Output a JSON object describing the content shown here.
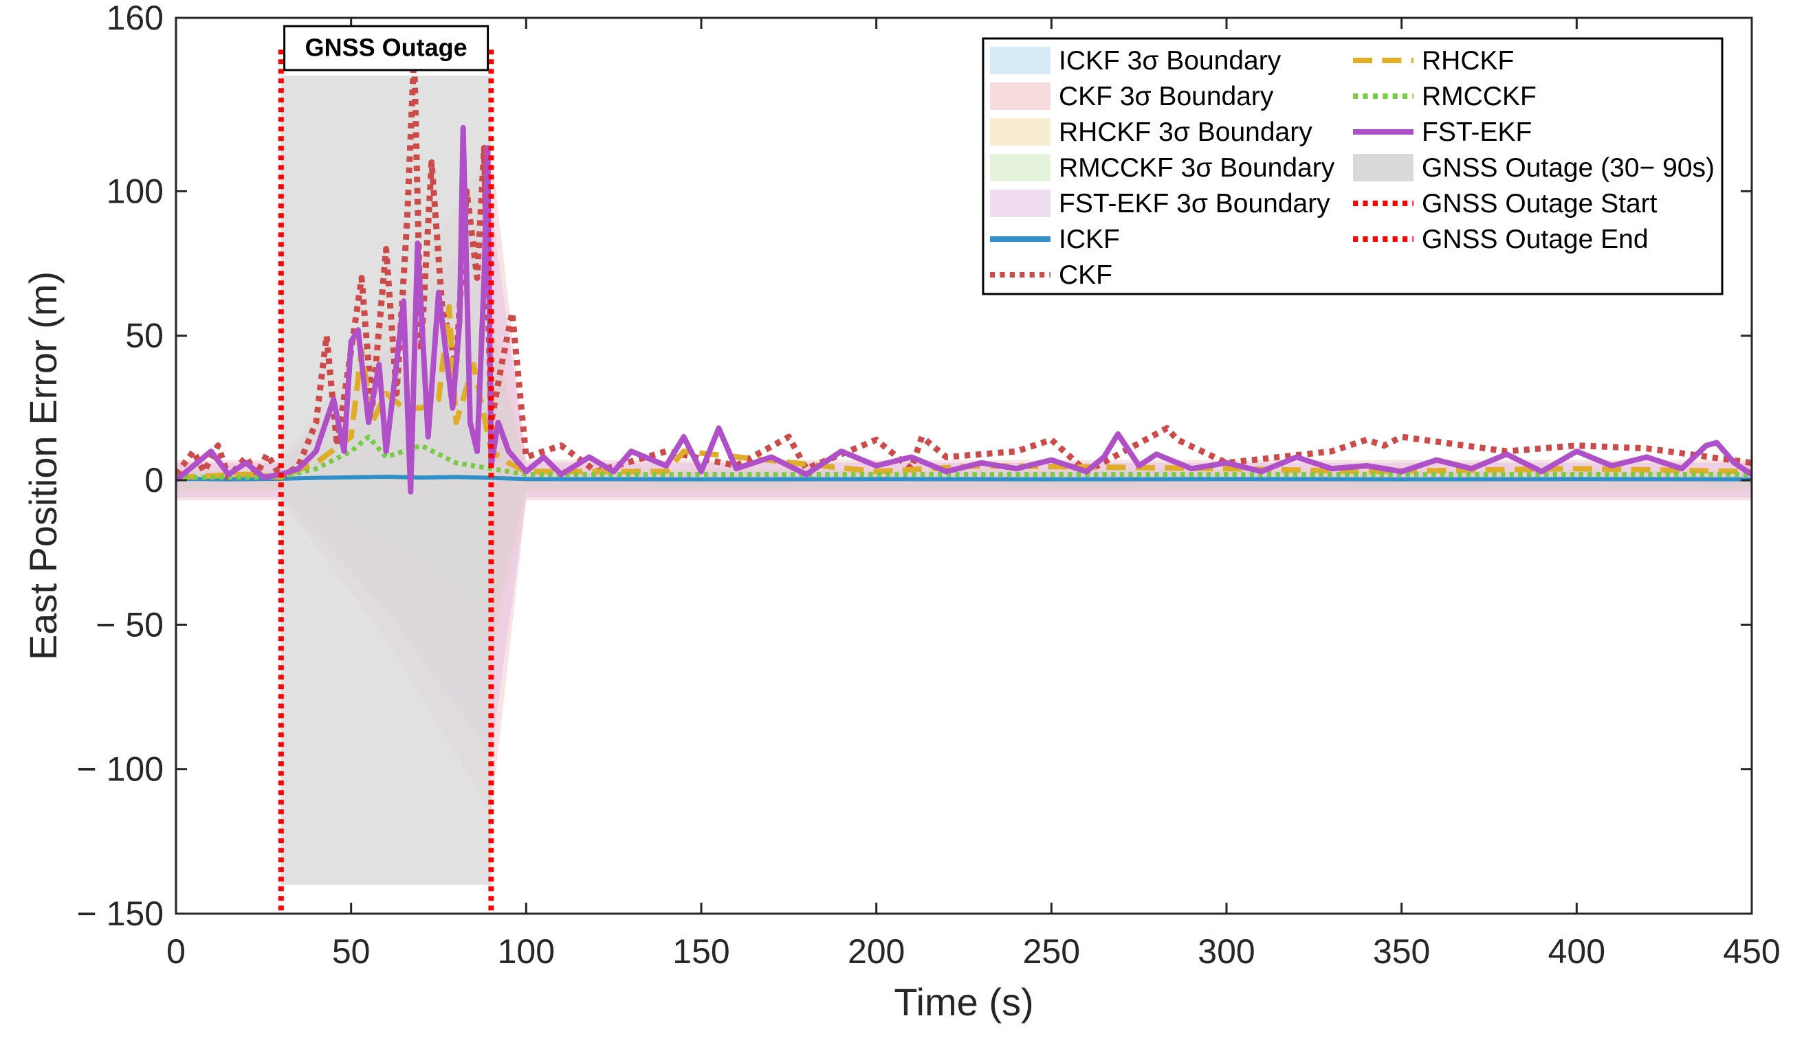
{
  "chart_data": {
    "type": "line",
    "title": "",
    "xlabel": "Time (s)",
    "ylabel": "East Position Error (m)",
    "xlim": [
      0,
      450
    ],
    "ylim": [
      -150,
      160
    ],
    "xticks": [
      0,
      50,
      100,
      150,
      200,
      250,
      300,
      350,
      400,
      450
    ],
    "xtick_labels": [
      "0",
      "50",
      "100",
      "150",
      "200",
      "250",
      "300",
      "350",
      "400",
      "450"
    ],
    "yticks": [
      160,
      100,
      50,
      0,
      -50,
      -100,
      -150
    ],
    "ytick_labels": [
      "160",
      "100",
      "50",
      "0",
      "− 50",
      "− 100",
      "− 150"
    ],
    "grid": false,
    "legend_position": "top-right",
    "annotation": "GNSS Outage",
    "outage": {
      "start": 30,
      "end": 90,
      "ymin": -140,
      "ymax": 140,
      "color": "#d9d9d9"
    },
    "legend": [
      {
        "label": "ICKF 3σ Boundary",
        "kind": "patch",
        "color": "#d6ebf5"
      },
      {
        "label": "CKF 3σ Boundary",
        "kind": "patch",
        "color": "#f6dcdc"
      },
      {
        "label": "RHCKF 3σ Boundary",
        "kind": "patch",
        "color": "#f8edd2"
      },
      {
        "label": "RMCCKF 3σ Boundary",
        "kind": "patch",
        "color": "#e5f3dc"
      },
      {
        "label": "FST-EKF 3σ Boundary",
        "kind": "patch",
        "color": "#efdcf1"
      },
      {
        "label": "ICKF",
        "kind": "solid",
        "color": "#2e8fc9"
      },
      {
        "label": "CKF",
        "kind": "dotted",
        "color": "#cc4a4a"
      },
      {
        "label": "RHCKF",
        "kind": "dashed",
        "color": "#e0ad28"
      },
      {
        "label": "RMCCKF",
        "kind": "dotted",
        "color": "#77cc44"
      },
      {
        "label": "FST-EKF",
        "kind": "solid",
        "color": "#b050c8"
      },
      {
        "label": "GNSS Outage (30− 90s)",
        "kind": "patch",
        "color": "#d9d9d9"
      },
      {
        "label": "GNSS Outage Start",
        "kind": "dotted",
        "color": "#ff0000"
      },
      {
        "label": "GNSS Outage End",
        "kind": "dotted",
        "color": "#ff0000"
      }
    ],
    "bounds": [
      {
        "name": "ICKF 3σ Boundary",
        "color": "#b9dcef",
        "opacity": 0.45,
        "points": [
          [
            0,
            3
          ],
          [
            30,
            3
          ],
          [
            60,
            25
          ],
          [
            90,
            55
          ],
          [
            100,
            3
          ],
          [
            450,
            3
          ]
        ]
      },
      {
        "name": "CKF 3σ Boundary",
        "color": "#eec2c2",
        "opacity": 0.45,
        "points": [
          [
            0,
            7
          ],
          [
            30,
            7
          ],
          [
            60,
            55
          ],
          [
            90,
            115
          ],
          [
            100,
            7
          ],
          [
            450,
            7
          ]
        ]
      },
      {
        "name": "RHCKF 3σ Boundary",
        "color": "#f1dca6",
        "opacity": 0.45,
        "points": [
          [
            0,
            4
          ],
          [
            30,
            4
          ],
          [
            60,
            30
          ],
          [
            90,
            65
          ],
          [
            100,
            4
          ],
          [
            450,
            4
          ]
        ]
      },
      {
        "name": "RMCCKF 3σ Boundary",
        "color": "#cfe9bf",
        "opacity": 0.45,
        "points": [
          [
            0,
            3
          ],
          [
            30,
            3
          ],
          [
            60,
            22
          ],
          [
            90,
            50
          ],
          [
            100,
            3
          ],
          [
            450,
            3
          ]
        ]
      },
      {
        "name": "FST-EKF 3σ Boundary",
        "color": "#e3bde8",
        "opacity": 0.5,
        "points": [
          [
            0,
            6
          ],
          [
            30,
            6
          ],
          [
            60,
            45
          ],
          [
            90,
            95
          ],
          [
            100,
            6
          ],
          [
            450,
            6
          ]
        ]
      }
    ],
    "series": [
      {
        "name": "ICKF",
        "color": "#2e8fc9",
        "style": "solid",
        "x": [
          0,
          15,
          30,
          40,
          50,
          60,
          70,
          80,
          90,
          100,
          150,
          200,
          250,
          300,
          350,
          400,
          450
        ],
        "y": [
          0.5,
          0.3,
          0.5,
          0.8,
          1.0,
          1.2,
          0.9,
          1.1,
          0.8,
          0.4,
          0.3,
          0.4,
          0.3,
          0.4,
          0.3,
          0.4,
          0.3
        ]
      },
      {
        "name": "CKF",
        "color": "#cc4a4a",
        "style": "dotted",
        "x": [
          0,
          5,
          8,
          12,
          15,
          20,
          23,
          26,
          30,
          35,
          40,
          43,
          46,
          50,
          53,
          56,
          60,
          63,
          66,
          68,
          70,
          73,
          76,
          80,
          83,
          86,
          88,
          90,
          93,
          96,
          100,
          110,
          120,
          140,
          160,
          175,
          180,
          200,
          210,
          213,
          216,
          220,
          240,
          250,
          260,
          283,
          286,
          300,
          330,
          335,
          340,
          345,
          350,
          380,
          400,
          420,
          450
        ],
        "y": [
          2,
          10,
          3,
          12,
          1,
          8,
          2,
          9,
          1,
          5,
          20,
          50,
          12,
          45,
          70,
          25,
          80,
          30,
          90,
          148,
          45,
          110,
          60,
          40,
          100,
          70,
          115,
          20,
          40,
          58,
          8,
          12,
          3,
          10,
          5,
          15,
          4,
          14,
          4,
          15,
          12,
          8,
          10,
          14,
          3,
          18,
          14,
          6,
          10,
          12,
          14,
          12,
          15,
          10,
          12,
          11,
          6
        ]
      },
      {
        "name": "RHCKF",
        "color": "#e0ad28",
        "style": "dashed",
        "x": [
          0,
          20,
          30,
          40,
          50,
          53,
          56,
          60,
          65,
          70,
          75,
          78,
          80,
          85,
          90,
          95,
          100,
          140,
          145,
          200,
          230,
          300,
          340,
          400,
          450
        ],
        "y": [
          1,
          2,
          1,
          6,
          15,
          45,
          20,
          30,
          25,
          25,
          28,
          60,
          20,
          40,
          10,
          6,
          3,
          3,
          10,
          3,
          5,
          4,
          3,
          4,
          3
        ]
      },
      {
        "name": "RMCCKF",
        "color": "#77cc44",
        "style": "dotted",
        "x": [
          0,
          20,
          30,
          40,
          50,
          55,
          60,
          70,
          80,
          90,
          100,
          150,
          200,
          250,
          300,
          350,
          400,
          450
        ],
        "y": [
          1,
          1,
          1,
          4,
          10,
          15,
          8,
          12,
          6,
          4,
          2,
          2,
          2,
          2,
          2,
          2,
          2,
          2
        ]
      },
      {
        "name": "FST-EKF",
        "color": "#b050c8",
        "style": "solid",
        "x": [
          0,
          10,
          15,
          20,
          25,
          30,
          35,
          40,
          45,
          48,
          50,
          52,
          55,
          58,
          60,
          62,
          65,
          67,
          69,
          72,
          75,
          77,
          79,
          81,
          82,
          84,
          86,
          88,
          89,
          90,
          92,
          95,
          100,
          105,
          110,
          118,
          125,
          130,
          140,
          145,
          150,
          155,
          160,
          170,
          180,
          190,
          200,
          210,
          220,
          230,
          240,
          250,
          260,
          265,
          269,
          275,
          280,
          290,
          300,
          310,
          320,
          330,
          340,
          350,
          360,
          370,
          380,
          390,
          400,
          410,
          420,
          430,
          437,
          440,
          445,
          450
        ],
        "y": [
          0,
          10,
          2,
          6,
          1,
          2,
          4,
          10,
          28,
          10,
          48,
          52,
          20,
          40,
          10,
          30,
          62,
          -4,
          82,
          15,
          65,
          45,
          25,
          55,
          122,
          20,
          10,
          70,
          115,
          5,
          20,
          10,
          3,
          8,
          2,
          8,
          3,
          10,
          5,
          15,
          3,
          18,
          4,
          8,
          2,
          10,
          5,
          8,
          3,
          6,
          4,
          7,
          3,
          8,
          16,
          5,
          9,
          4,
          6,
          3,
          8,
          4,
          5,
          3,
          7,
          4,
          9,
          3,
          10,
          5,
          8,
          4,
          12,
          13,
          6,
          2
        ]
      }
    ]
  }
}
